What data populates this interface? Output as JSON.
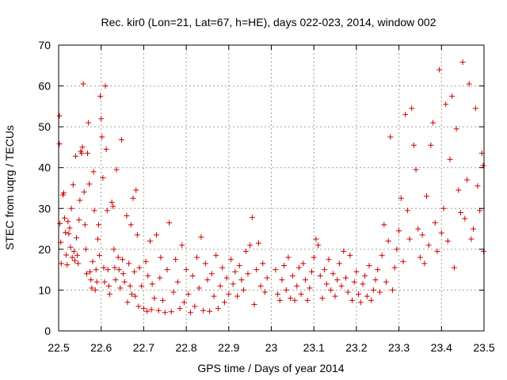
{
  "chart_data": {
    "type": "scatter",
    "title": "Rec. kir0 (Lon=21, Lat=67, h=HE), days 022-023, 2014, window 002",
    "xlabel": "GPS time / Days of year 2014",
    "ylabel": "STEC from uqrg / TECUs",
    "xlim": [
      22.5,
      23.5
    ],
    "ylim": [
      0,
      70
    ],
    "xticks": [
      "22.5",
      "22.6",
      "22.7",
      "22.8",
      "22.9",
      "23",
      "23.1",
      "23.2",
      "23.3",
      "23.4",
      "23.5"
    ],
    "yticks": [
      "0",
      "10",
      "20",
      "30",
      "40",
      "50",
      "60",
      "70"
    ],
    "grid": true,
    "marker": "plus",
    "color": "#cc0000",
    "series": [
      {
        "points": [
          [
            22.502,
            52.7
          ],
          [
            22.502,
            45.8
          ],
          [
            22.503,
            26.3
          ],
          [
            22.505,
            21.7
          ],
          [
            22.506,
            16.5
          ],
          [
            22.51,
            33.3
          ],
          [
            22.512,
            33.8
          ],
          [
            22.514,
            27.6
          ],
          [
            22.516,
            24.1
          ],
          [
            22.518,
            18.6
          ],
          [
            22.52,
            16.2
          ],
          [
            22.522,
            26.8
          ],
          [
            22.524,
            23.8
          ],
          [
            22.526,
            25.2
          ],
          [
            22.528,
            20.5
          ],
          [
            22.53,
            30.0
          ],
          [
            22.532,
            18.0
          ],
          [
            22.534,
            35.8
          ],
          [
            22.536,
            19.5
          ],
          [
            22.538,
            17.2
          ],
          [
            22.54,
            42.8
          ],
          [
            22.542,
            22.8
          ],
          [
            22.544,
            18.5
          ],
          [
            22.546,
            16.5
          ],
          [
            22.548,
            27.2
          ],
          [
            22.55,
            32.0
          ],
          [
            22.552,
            44.0
          ],
          [
            22.554,
            43.5
          ],
          [
            22.556,
            45.0
          ],
          [
            22.558,
            60.5
          ],
          [
            22.56,
            34.0
          ],
          [
            22.562,
            26.0
          ],
          [
            22.564,
            20.0
          ],
          [
            22.566,
            14.0
          ],
          [
            22.568,
            43.5
          ],
          [
            22.57,
            51.0
          ],
          [
            22.572,
            36.0
          ],
          [
            22.574,
            14.5
          ],
          [
            22.576,
            12.5
          ],
          [
            22.578,
            10.5
          ],
          [
            22.58,
            17.0
          ],
          [
            22.582,
            39.0
          ],
          [
            22.584,
            29.5
          ],
          [
            22.586,
            10.0
          ],
          [
            22.588,
            15.0
          ],
          [
            22.59,
            12.0
          ],
          [
            22.592,
            22.5
          ],
          [
            22.594,
            26.0
          ],
          [
            22.596,
            18.5
          ],
          [
            22.598,
            57.5
          ],
          [
            22.6,
            52.0
          ],
          [
            22.602,
            47.5
          ],
          [
            22.604,
            37.5
          ],
          [
            22.606,
            15.5
          ],
          [
            22.608,
            12.0
          ],
          [
            22.61,
            60.0
          ],
          [
            22.612,
            44.5
          ],
          [
            22.614,
            29.5
          ],
          [
            22.616,
            15.0
          ],
          [
            22.618,
            11.0
          ],
          [
            22.62,
            9.0
          ],
          [
            22.625,
            31.5
          ],
          [
            22.628,
            30.5
          ],
          [
            22.63,
            20.0
          ],
          [
            22.632,
            15.5
          ],
          [
            22.634,
            12.5
          ],
          [
            22.636,
            39.5
          ],
          [
            22.64,
            18.0
          ],
          [
            22.642,
            15.0
          ],
          [
            22.645,
            10.5
          ],
          [
            22.648,
            46.8
          ],
          [
            22.65,
            17.5
          ],
          [
            22.652,
            14.0
          ],
          [
            22.655,
            12.0
          ],
          [
            22.66,
            28.2
          ],
          [
            22.662,
            7.0
          ],
          [
            22.665,
            16.5
          ],
          [
            22.668,
            11.0
          ],
          [
            22.67,
            26.0
          ],
          [
            22.672,
            9.0
          ],
          [
            22.675,
            32.5
          ],
          [
            22.678,
            14.5
          ],
          [
            22.68,
            8.5
          ],
          [
            22.682,
            34.5
          ],
          [
            22.685,
            23.5
          ],
          [
            22.688,
            6.0
          ],
          [
            22.69,
            15.5
          ],
          [
            22.695,
            11.0
          ],
          [
            22.7,
            5.5
          ],
          [
            22.705,
            17.0
          ],
          [
            22.708,
            4.8
          ],
          [
            22.71,
            13.5
          ],
          [
            22.715,
            22.0
          ],
          [
            22.718,
            5.2
          ],
          [
            22.72,
            11.5
          ],
          [
            22.725,
            8.0
          ],
          [
            22.73,
            23.5
          ],
          [
            22.735,
            5.0
          ],
          [
            22.738,
            13.0
          ],
          [
            22.74,
            18.0
          ],
          [
            22.745,
            7.5
          ],
          [
            22.75,
            4.5
          ],
          [
            22.755,
            15.0
          ],
          [
            22.76,
            26.5
          ],
          [
            22.765,
            4.7
          ],
          [
            22.77,
            9.5
          ],
          [
            22.775,
            17.5
          ],
          [
            22.78,
            12.0
          ],
          [
            22.785,
            5.5
          ],
          [
            22.79,
            21.0
          ],
          [
            22.795,
            7.0
          ],
          [
            22.8,
            15.0
          ],
          [
            22.805,
            9.0
          ],
          [
            22.81,
            4.5
          ],
          [
            22.815,
            13.5
          ],
          [
            22.82,
            6.0
          ],
          [
            22.825,
            18.0
          ],
          [
            22.83,
            10.5
          ],
          [
            22.835,
            23.0
          ],
          [
            22.84,
            5.0
          ],
          [
            22.845,
            16.5
          ],
          [
            22.85,
            12.5
          ],
          [
            22.855,
            4.8
          ],
          [
            22.86,
            14.0
          ],
          [
            22.865,
            8.5
          ],
          [
            22.87,
            18.5
          ],
          [
            22.875,
            5.5
          ],
          [
            22.88,
            11.0
          ],
          [
            22.885,
            15.5
          ],
          [
            22.89,
            7.0
          ],
          [
            22.895,
            13.0
          ],
          [
            22.9,
            9.0
          ],
          [
            22.905,
            17.5
          ],
          [
            22.91,
            11.5
          ],
          [
            22.915,
            14.5
          ],
          [
            22.92,
            8.5
          ],
          [
            22.925,
            16.0
          ],
          [
            22.93,
            12.5
          ],
          [
            22.935,
            10.0
          ],
          [
            22.94,
            19.5
          ],
          [
            22.945,
            14.0
          ],
          [
            22.95,
            21.0
          ],
          [
            22.955,
            27.8
          ],
          [
            22.96,
            6.5
          ],
          [
            22.965,
            15.0
          ],
          [
            22.97,
            21.5
          ],
          [
            22.975,
            11.0
          ],
          [
            22.98,
            16.5
          ],
          [
            22.985,
            9.5
          ],
          [
            22.99,
            13.0
          ],
          [
            23.01,
            15.0
          ],
          [
            23.015,
            9.0
          ],
          [
            23.02,
            7.5
          ],
          [
            23.025,
            12.5
          ],
          [
            23.03,
            16.0
          ],
          [
            23.035,
            10.0
          ],
          [
            23.04,
            18.0
          ],
          [
            23.045,
            8.0
          ],
          [
            23.05,
            13.5
          ],
          [
            23.055,
            7.5
          ],
          [
            23.06,
            11.0
          ],
          [
            23.065,
            15.5
          ],
          [
            23.07,
            9.0
          ],
          [
            23.075,
            16.5
          ],
          [
            23.08,
            12.5
          ],
          [
            23.085,
            7.5
          ],
          [
            23.09,
            10.5
          ],
          [
            23.095,
            14.5
          ],
          [
            23.1,
            18.0
          ],
          [
            23.105,
            22.5
          ],
          [
            23.11,
            21.0
          ],
          [
            23.115,
            13.5
          ],
          [
            23.12,
            8.0
          ],
          [
            23.125,
            15.0
          ],
          [
            23.13,
            11.5
          ],
          [
            23.135,
            17.5
          ],
          [
            23.14,
            10.0
          ],
          [
            23.145,
            14.0
          ],
          [
            23.15,
            8.5
          ],
          [
            23.155,
            12.5
          ],
          [
            23.16,
            16.5
          ],
          [
            23.165,
            11.0
          ],
          [
            23.17,
            19.5
          ],
          [
            23.175,
            13.0
          ],
          [
            23.18,
            9.5
          ],
          [
            23.185,
            18.5
          ],
          [
            23.19,
            7.5
          ],
          [
            23.195,
            12.0
          ],
          [
            23.2,
            14.5
          ],
          [
            23.205,
            9.0
          ],
          [
            23.21,
            7.0
          ],
          [
            23.215,
            11.5
          ],
          [
            23.22,
            13.5
          ],
          [
            23.225,
            8.5
          ],
          [
            23.23,
            16.0
          ],
          [
            23.235,
            7.5
          ],
          [
            23.24,
            10.0
          ],
          [
            23.245,
            12.5
          ],
          [
            23.25,
            15.0
          ],
          [
            23.255,
            9.5
          ],
          [
            23.26,
            18.5
          ],
          [
            23.265,
            26.0
          ],
          [
            23.27,
            12.0
          ],
          [
            23.275,
            22.0
          ],
          [
            23.28,
            47.5
          ],
          [
            23.285,
            10.0
          ],
          [
            23.29,
            15.5
          ],
          [
            23.295,
            20.0
          ],
          [
            23.3,
            24.5
          ],
          [
            23.305,
            32.5
          ],
          [
            23.31,
            17.0
          ],
          [
            23.315,
            53.0
          ],
          [
            23.32,
            29.5
          ],
          [
            23.325,
            22.5
          ],
          [
            23.33,
            54.5
          ],
          [
            23.335,
            45.5
          ],
          [
            23.34,
            39.5
          ],
          [
            23.345,
            25.0
          ],
          [
            23.35,
            18.0
          ],
          [
            23.355,
            23.5
          ],
          [
            23.36,
            16.5
          ],
          [
            23.365,
            33.0
          ],
          [
            23.37,
            21.0
          ],
          [
            23.375,
            45.5
          ],
          [
            23.38,
            51.0
          ],
          [
            23.385,
            26.5
          ],
          [
            23.39,
            19.5
          ],
          [
            23.395,
            64.0
          ],
          [
            23.4,
            24.0
          ],
          [
            23.405,
            30.0
          ],
          [
            23.41,
            55.5
          ],
          [
            23.415,
            22.0
          ],
          [
            23.42,
            42.0
          ],
          [
            23.425,
            57.5
          ],
          [
            23.43,
            15.5
          ],
          [
            23.435,
            49.5
          ],
          [
            23.44,
            34.5
          ],
          [
            23.445,
            29.0
          ],
          [
            23.45,
            65.8
          ],
          [
            23.455,
            27.5
          ],
          [
            23.46,
            37.0
          ],
          [
            23.465,
            60.5
          ],
          [
            23.47,
            22.5
          ],
          [
            23.475,
            25.0
          ],
          [
            23.48,
            54.5
          ],
          [
            23.485,
            35.5
          ],
          [
            23.49,
            29.5
          ],
          [
            23.495,
            43.5
          ],
          [
            23.498,
            40.5
          ],
          [
            23.499,
            19.5
          ]
        ]
      }
    ]
  }
}
